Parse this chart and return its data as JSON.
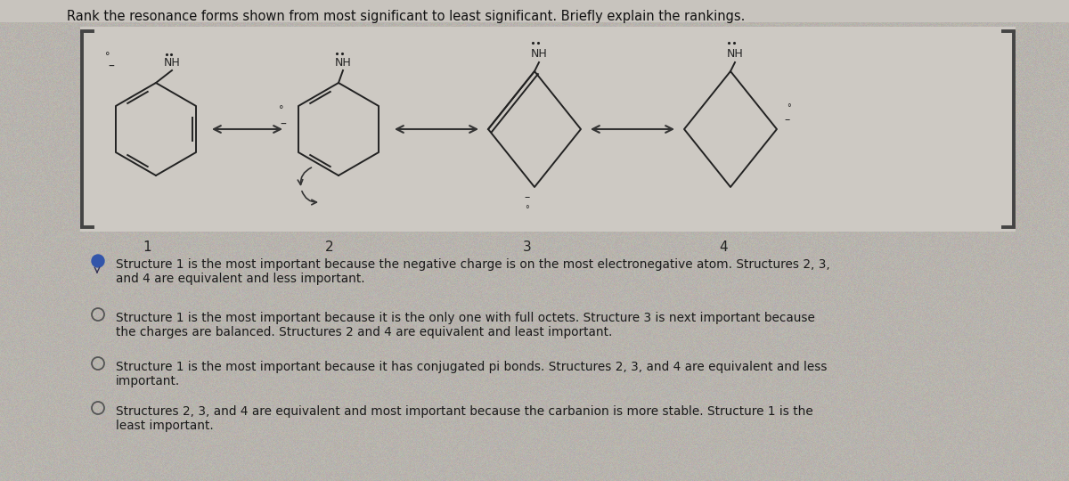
{
  "background_color": "#b8b4ae",
  "panel_color": "#d0ccc6",
  "bracket_inner_color": "#d4d0ca",
  "title_text": "Rank the resonance forms shown from most significant to least significant. Briefly explain the rankings.",
  "title_fontsize": 10.5,
  "title_color": "#111111",
  "answer_options": [
    {
      "selected": true,
      "lines": [
        "Structure 1 is the most important because the negative charge is on the most electronegative atom. Structures 2, 3,",
        "and 4 are equivalent and less important."
      ]
    },
    {
      "selected": false,
      "lines": [
        "Structure 1 is the most important because it is the only one with full octets. Structure 3 is next important because",
        "the charges are balanced. Structures 2 and 4 are equivalent and least important."
      ]
    },
    {
      "selected": false,
      "lines": [
        "Structure 1 is the most important because it has conjugated pi bonds. Structures 2, 3, and 4 are equivalent and less",
        "important."
      ]
    },
    {
      "selected": false,
      "lines": [
        "Structures 2, 3, and 4 are equivalent and most important because the carbanion is more stable. Structure 1 is the",
        "least important."
      ]
    }
  ],
  "text_color": "#1a1a1a",
  "answer_fontsize": 9.8,
  "struct_labels": [
    "1",
    "2",
    "3",
    "4"
  ]
}
